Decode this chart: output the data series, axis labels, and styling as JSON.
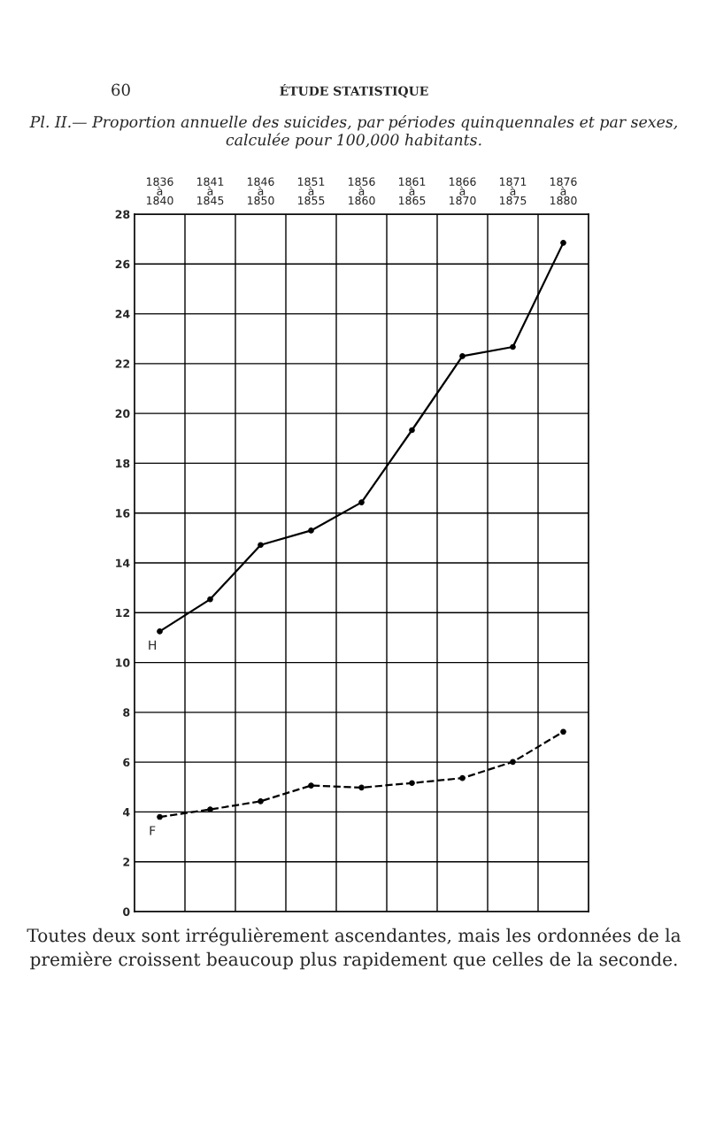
{
  "chart_data": {
    "type": "line",
    "title": "Pl. II.— Proportion annuelle des suicides, par périodes quinquennales et par sexes, calculée pour 100,000 habitants.",
    "annotations": [
      "60",
      "ÉTUDE STATISTIQUE",
      "Toutes deux sont irrégulièrement ascendantes, mais les ordonnées de la première croissent beaucoup plus rapidement que celles de la seconde."
    ],
    "categories": [
      "1836\nà\n1840",
      "1841\nà\n1845",
      "1846\nà\n1850",
      "1851\nà\n1855",
      "1856\nà\n1860",
      "1861\nà\n1865",
      "1866\nà\n1870",
      "1871\nà\n1875",
      "1876\nà\n1880"
    ],
    "series": [
      {
        "name": "H",
        "color": "#000000",
        "line_style": "solid",
        "values": [
          11.25,
          12.54,
          14.72,
          15.3,
          16.43,
          19.33,
          22.3,
          22.67,
          26.85
        ]
      },
      {
        "name": "F",
        "color": "#000000",
        "line_style": "dashed",
        "values": [
          3.8,
          4.1,
          4.43,
          5.06,
          4.98,
          5.16,
          5.36,
          6.01,
          7.22
        ]
      }
    ],
    "ylim": [
      0,
      28
    ],
    "yticks": [
      0,
      2,
      4,
      6,
      8,
      10,
      12,
      14,
      16,
      18,
      20,
      22,
      24,
      26,
      28
    ],
    "grid": true,
    "marker": "circle",
    "legend": false
  }
}
